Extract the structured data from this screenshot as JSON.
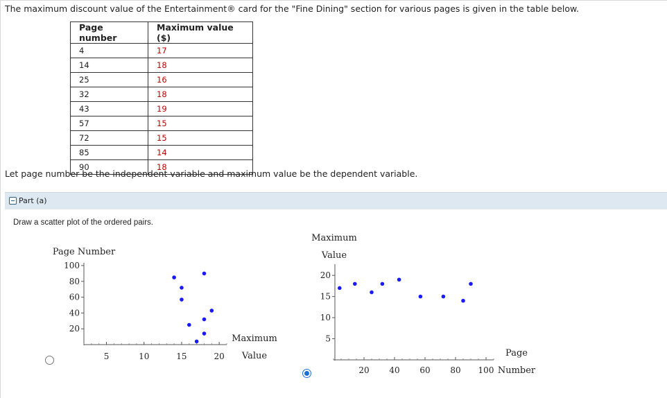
{
  "intro_text": "The maximum discount value of the Entertainment® card for the \"Fine Dining\" section for various pages is given in the table below.",
  "table": {
    "headers": [
      "Page number",
      "Maximum value ($)"
    ],
    "rows": [
      [
        "4",
        "17"
      ],
      [
        "14",
        "18"
      ],
      [
        "25",
        "16"
      ],
      [
        "32",
        "18"
      ],
      [
        "43",
        "19"
      ],
      [
        "57",
        "15"
      ],
      [
        "72",
        "15"
      ],
      [
        "85",
        "14"
      ],
      [
        "90",
        "18"
      ]
    ]
  },
  "after_text": "Let page number be the independent variable and maximum value be the dependent variable.",
  "part": {
    "title": "Part (a)"
  },
  "instruction": "Draw a scatter plot of the ordered pairs.",
  "colors": {
    "point": "#1a1aff",
    "value_text": "#c00000",
    "part_bar": "#dde8f1"
  },
  "options": [
    {
      "selected": false
    },
    {
      "selected": true
    }
  ],
  "chart_data": [
    {
      "type": "scatter",
      "ylabel": "Page Number",
      "xlabel_lines": [
        "Maximum",
        "Value"
      ],
      "xlim": [
        2,
        21
      ],
      "ylim": [
        0,
        100
      ],
      "xticks": [
        5,
        10,
        15,
        20
      ],
      "yticks": [
        20,
        40,
        60,
        80,
        100
      ],
      "points": [
        [
          17,
          4
        ],
        [
          18,
          14
        ],
        [
          16,
          25
        ],
        [
          18,
          32
        ],
        [
          19,
          43
        ],
        [
          15,
          57
        ],
        [
          15,
          72
        ],
        [
          14,
          85
        ],
        [
          18,
          90
        ]
      ]
    },
    {
      "type": "scatter",
      "ylabel_lines": [
        "Maximum",
        "Value"
      ],
      "xlabel_lines": [
        "Page",
        "Number"
      ],
      "xlim": [
        0,
        105
      ],
      "ylim": [
        0,
        22
      ],
      "xticks": [
        20,
        40,
        60,
        80,
        100
      ],
      "yticks": [
        5,
        10,
        15,
        20
      ],
      "points": [
        [
          4,
          17
        ],
        [
          14,
          18
        ],
        [
          25,
          16
        ],
        [
          32,
          18
        ],
        [
          43,
          19
        ],
        [
          57,
          15
        ],
        [
          72,
          15
        ],
        [
          85,
          14
        ],
        [
          90,
          18
        ]
      ]
    }
  ]
}
